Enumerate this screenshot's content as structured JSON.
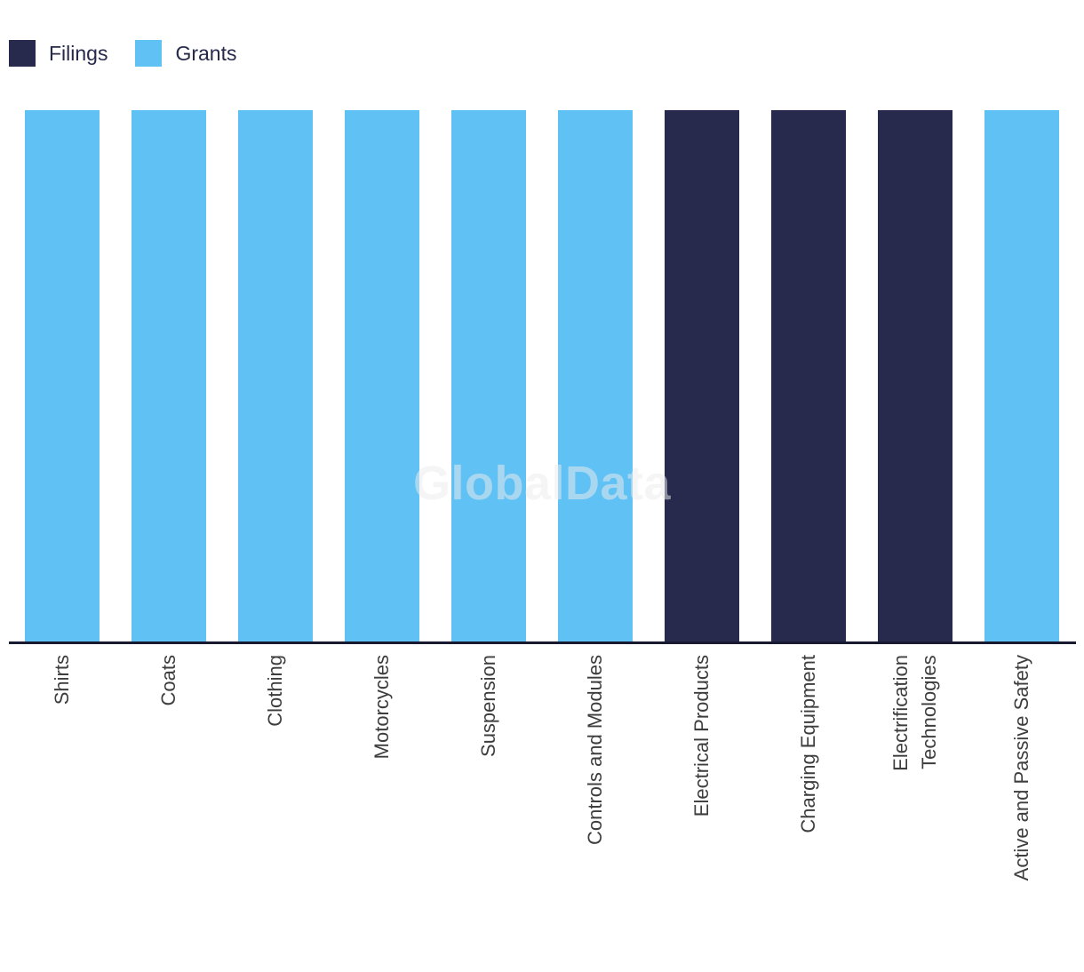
{
  "watermark": "GlobalData",
  "legend": {
    "items": [
      {
        "label": "Filings",
        "color": "#272a4d"
      },
      {
        "label": "Grants",
        "color": "#60c1f5"
      }
    ]
  },
  "chart_data": {
    "type": "bar",
    "orientation": "vertical",
    "title": "",
    "xlabel": "",
    "ylabel": "",
    "ylim": [
      0,
      1
    ],
    "grid": false,
    "y_axis_visible": false,
    "legend_position": "top-left",
    "x_tick_rotation": 90,
    "categories": [
      "Shirts",
      "Coats",
      "Clothing",
      "Motorcycles",
      "Suspension",
      "Controls and Modules",
      "Electrical Products",
      "Charging Equipment",
      "Electrification\nTechnologies",
      "Active and Passive Safety"
    ],
    "series": [
      {
        "name": "Filings",
        "color": "#272a4d",
        "values": [
          0,
          0,
          0,
          0,
          0,
          0,
          1,
          1,
          1,
          0
        ]
      },
      {
        "name": "Grants",
        "color": "#60c1f5",
        "values": [
          1,
          1,
          1,
          1,
          1,
          1,
          0,
          0,
          0,
          1
        ]
      }
    ],
    "bar_series": [
      "Grants",
      "Grants",
      "Grants",
      "Grants",
      "Grants",
      "Grants",
      "Filings",
      "Filings",
      "Filings",
      "Grants"
    ]
  }
}
